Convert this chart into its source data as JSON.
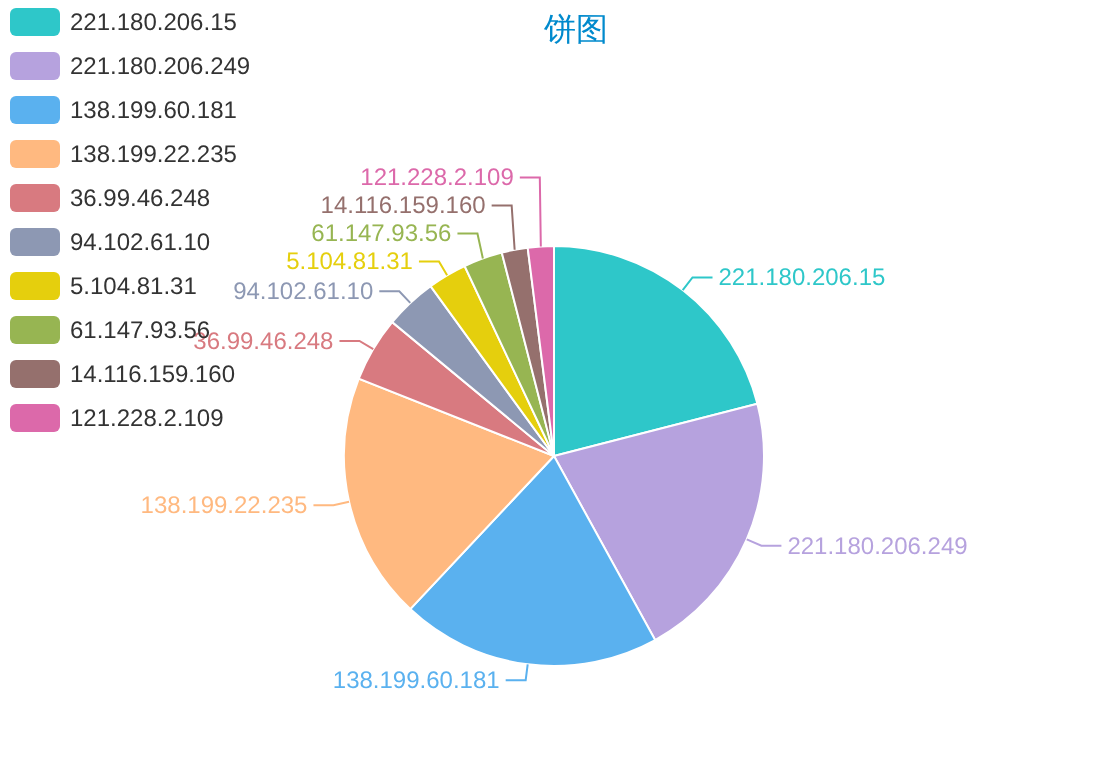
{
  "chart_data": {
    "type": "pie",
    "title": "饼图",
    "legend": "top left",
    "categories": [
      "221.180.206.15",
      "221.180.206.249",
      "138.199.60.181",
      "138.199.22.235",
      "36.99.46.248",
      "94.102.61.10",
      "5.104.81.31",
      "61.147.93.56",
      "14.116.159.160",
      "121.228.2.109"
    ],
    "values": [
      21,
      21,
      20,
      19,
      5,
      4,
      3,
      3,
      2,
      2
    ],
    "colors": [
      "#2ec7c9",
      "#b6a2de",
      "#5ab1ef",
      "#ffb980",
      "#d87a80",
      "#8d98b3",
      "#e5cf0d",
      "#97b552",
      "#95706d",
      "#dc69aa"
    ]
  }
}
